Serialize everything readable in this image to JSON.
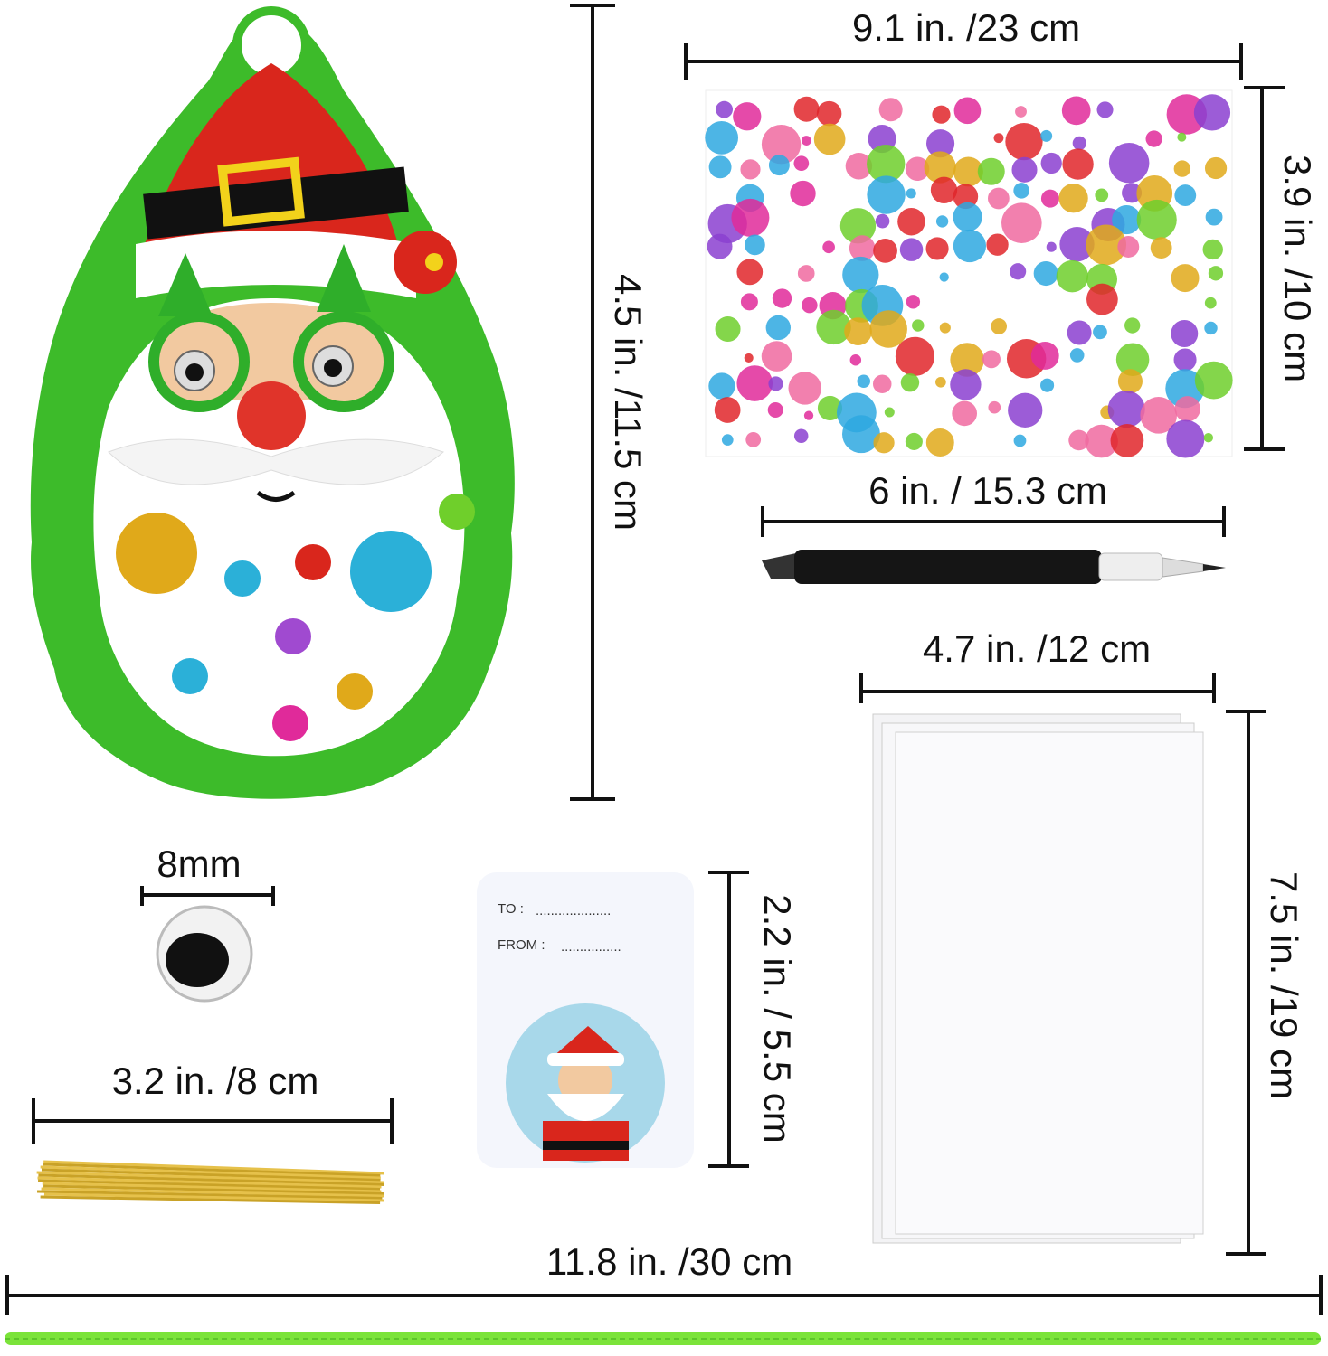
{
  "dimensions": {
    "ornament_height": "4.5 in. /11.5 cm",
    "sticker_width": "9.1 in. /23 cm",
    "sticker_height": "3.9 in. /10 cm",
    "pen_length": "6 in. / 15.3 cm",
    "bag_width": "4.7 in. /12 cm",
    "bag_height": "7.5 in. /19 cm",
    "eye_size": "8mm",
    "twist_tie_length": "3.2 in. /8 cm",
    "tag_height": "2.2 in. / 5.5 cm",
    "rope_length": "11.8 in. /30 cm"
  },
  "gift_tag": {
    "to_label": "TO :",
    "to_dots": "....................",
    "from_label": "FROM :",
    "from_dots": "................"
  },
  "colors": {
    "ornament_green": "#3dbb2a",
    "hat_red": "#d9261c",
    "rope_green": "#7be33a",
    "tie_gold": "#c9a227"
  }
}
